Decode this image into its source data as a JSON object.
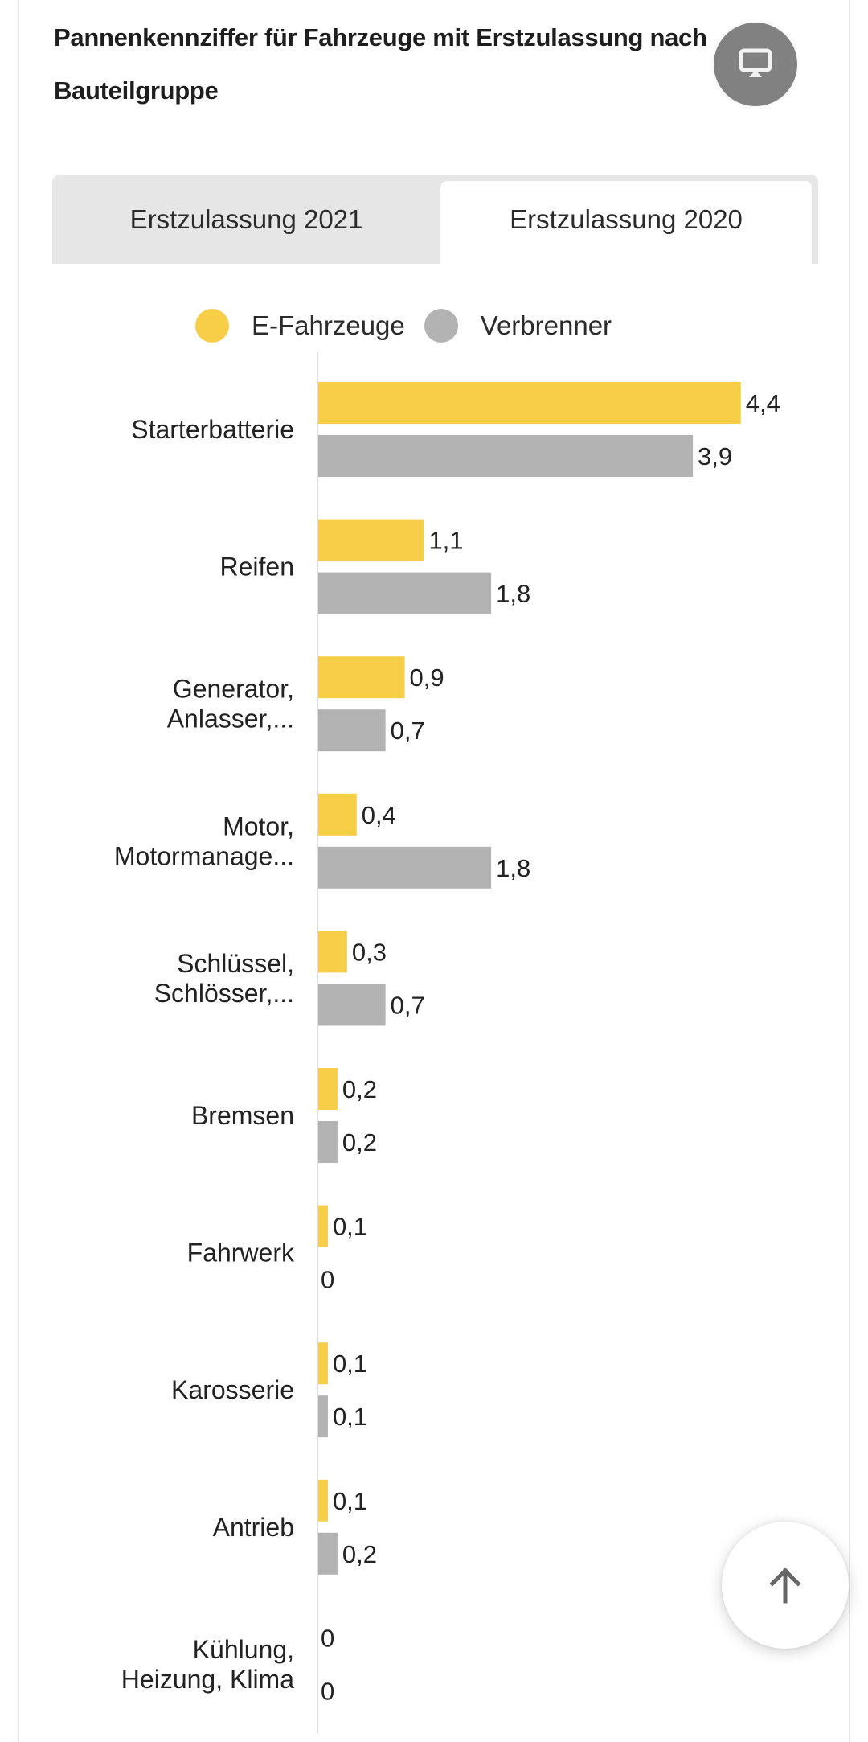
{
  "header": {
    "title": "Pannenkennziffer für Fahrzeuge mit Erstzulassung nach Bauteilgruppe",
    "present_icon": "monitor-icon"
  },
  "tabs": [
    {
      "label": "Erstzulassung 2021",
      "active": false
    },
    {
      "label": "Erstzulassung 2020",
      "active": true
    }
  ],
  "scroll_top_icon": "arrow-up-icon",
  "colors": {
    "e_fahrzeuge": "#F7CE48",
    "verbrenner": "#B3B3B3",
    "axis": "#DDDDDD",
    "text": "#222222"
  },
  "chart_data": {
    "type": "bar",
    "orientation": "horizontal",
    "title": "Pannenkennziffer für Fahrzeuge mit Erstzulassung nach Bauteilgruppe",
    "legend": [
      "E-Fahrzeuge",
      "Verbrenner"
    ],
    "legend_position": "top",
    "categories": [
      [
        "Starterbatterie"
      ],
      [
        "Reifen"
      ],
      [
        "Generator,",
        "Anlasser,..."
      ],
      [
        "Motor,",
        "Motormanage..."
      ],
      [
        "Schlüssel,",
        "Schlösser,..."
      ],
      [
        "Bremsen"
      ],
      [
        "Fahrwerk"
      ],
      [
        "Karosserie"
      ],
      [
        "Antrieb"
      ],
      [
        "Kühlung,",
        "Heizung, Klima"
      ]
    ],
    "series": [
      {
        "name": "E-Fahrzeuge",
        "values": [
          4.4,
          1.1,
          0.9,
          0.4,
          0.3,
          0.2,
          0.1,
          0.1,
          0.1,
          0
        ],
        "labels": [
          "4,4",
          "1,1",
          "0,9",
          "0,4",
          "0,3",
          "0,2",
          "0,1",
          "0,1",
          "0,1",
          "0"
        ]
      },
      {
        "name": "Verbrenner",
        "values": [
          3.9,
          1.8,
          0.7,
          1.8,
          0.7,
          0.2,
          0,
          0.1,
          0.2,
          0
        ],
        "labels": [
          "3,9",
          "1,8",
          "0,7",
          "1,8",
          "0,7",
          "0,2",
          "0",
          "0,1",
          "0,2",
          "0"
        ]
      }
    ],
    "xlabel": "",
    "ylabel": "",
    "xlim": [
      0,
      5.6
    ],
    "grid": false
  }
}
